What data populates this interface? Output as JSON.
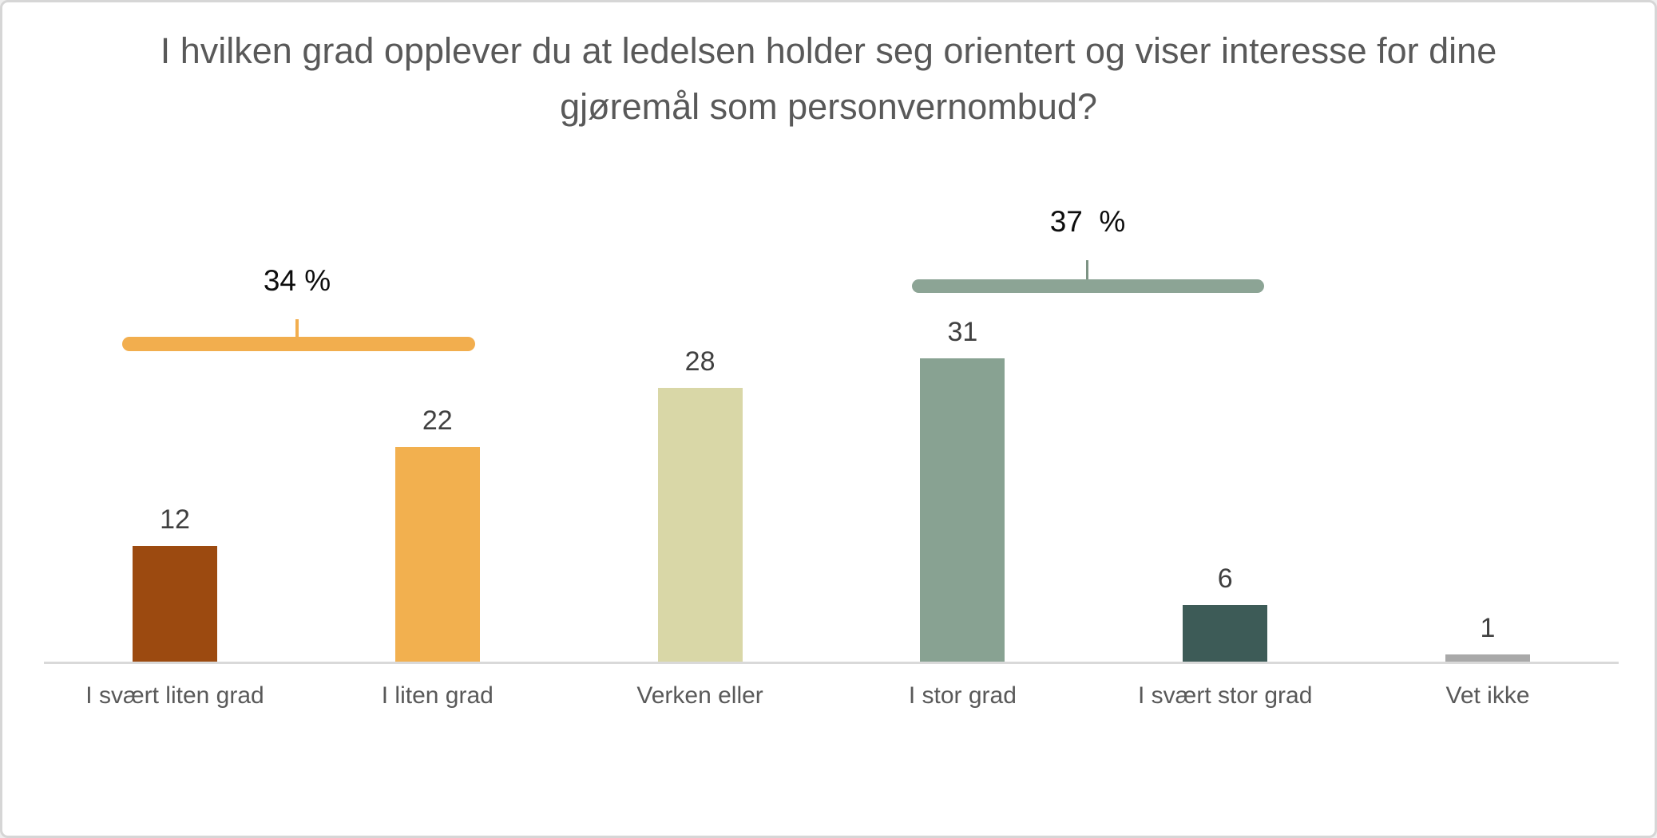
{
  "frame": {
    "background": "#ffffff",
    "border_color": "#d6d6d6"
  },
  "chart_data": {
    "type": "bar",
    "title": "I hvilken grad opplever du at ledelsen holder seg orientert og viser interesse for dine gjøremål som personvernombud?",
    "categories": [
      "I svært liten grad",
      "I liten grad",
      "Verken eller",
      "I stor grad",
      "I svært stor grad",
      "Vet ikke"
    ],
    "values": [
      12,
      22,
      28,
      31,
      6,
      1
    ],
    "value_labels": [
      "12",
      "22",
      "28",
      "31",
      "6",
      "1"
    ],
    "bar_colors": [
      "#9C4A10",
      "#F2B04F",
      "#D9D7A7",
      "#88A292",
      "#3D5B57",
      "#A9A9A9"
    ],
    "xlabel": "",
    "ylabel": "",
    "ylim": [
      0,
      33
    ],
    "grid": false,
    "legend": false,
    "axis_line_color": "#D9D9D9",
    "text_colors": {
      "title": "#595959",
      "value_label": "#404040",
      "category_label": "#595959",
      "annotation_label": "#0D0D0D"
    },
    "annotations": [
      {
        "label": "34 %",
        "value_pct": 34,
        "spans": [
          "I svært liten grad",
          "I liten grad"
        ],
        "bracket_color": "#F2AE4E",
        "tick_color": "#F2AE4E"
      },
      {
        "label": "37  %",
        "value_pct": 37,
        "spans": [
          "I stor grad",
          "I svært stor grad"
        ],
        "bracket_color": "#8CA495",
        "tick_color": "#7D9384"
      }
    ]
  }
}
